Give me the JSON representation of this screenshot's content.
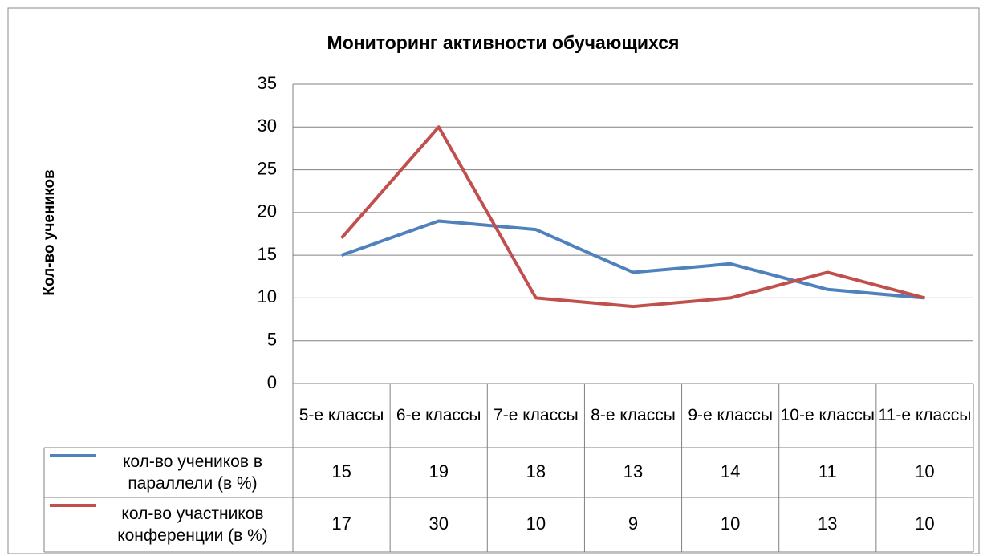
{
  "chart_data": {
    "type": "line",
    "title": "Мониторинг активности обучающихся",
    "y_label": "Кол-во учеников",
    "categories": [
      "5-е классы",
      "6-е классы",
      "7-е классы",
      "8-е классы",
      "9-е классы",
      "10-е классы",
      "11-е классы"
    ],
    "series": [
      {
        "name": "кол-во учеников в параллели (в %)",
        "color": "#4f81bd",
        "values": [
          15,
          19,
          18,
          13,
          14,
          11,
          10
        ]
      },
      {
        "name": "кол-во участников конференции (в %)",
        "color": "#c0504d",
        "values": [
          17,
          30,
          10,
          9,
          10,
          13,
          10
        ]
      }
    ],
    "ylim": [
      0,
      35
    ],
    "yticks": [
      0,
      5,
      10,
      15,
      20,
      25,
      30,
      35
    ],
    "grid": true
  }
}
